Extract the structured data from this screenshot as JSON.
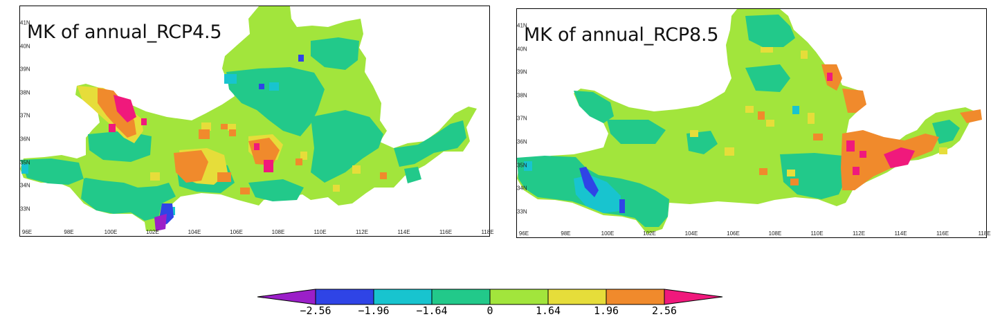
{
  "panels": [
    {
      "title": "MK of annual_RCP4.5",
      "x_ticks": [
        "96E",
        "98E",
        "100E",
        "102E",
        "104E",
        "106E",
        "108E",
        "110E",
        "112E",
        "114E",
        "116E",
        "118E"
      ],
      "y_ticks": [
        "41N",
        "40N",
        "39N",
        "38N",
        "37N",
        "36N",
        "35N",
        "34N",
        "33N"
      ]
    },
    {
      "title": "MK of annual_RCP8.5",
      "x_ticks": [
        "96E",
        "98E",
        "100E",
        "102E",
        "104E",
        "106E",
        "108E",
        "110E",
        "112E",
        "114E",
        "116E",
        "118E"
      ],
      "y_ticks": [
        "41N",
        "40N",
        "39N",
        "38N",
        "37N",
        "36N",
        "35N",
        "34N",
        "33N"
      ]
    }
  ],
  "colorbar": {
    "labels": [
      "-2.56",
      "-1.96",
      "-1.64",
      "0",
      "1.64",
      "1.96",
      "2.56"
    ],
    "colors": [
      "#9b1fc8",
      "#2f44e6",
      "#18c4cf",
      "#22c98a",
      "#a2e53c",
      "#e6dd3a",
      "#f08a2c",
      "#f0197c"
    ]
  }
}
